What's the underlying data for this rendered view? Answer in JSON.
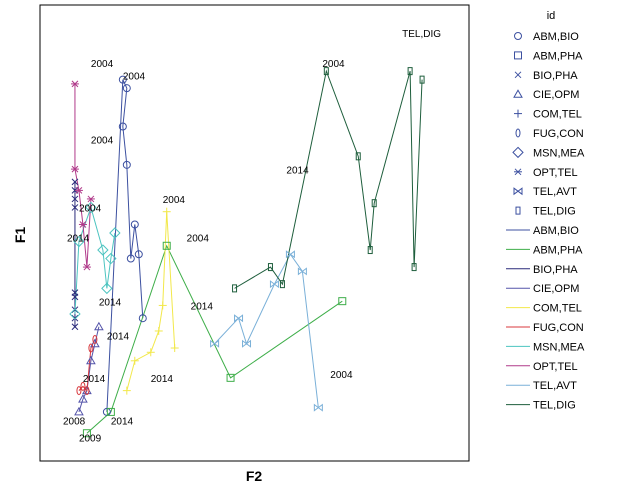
{
  "chart_data": {
    "type": "scatter",
    "title": "",
    "xlabel": "F2",
    "ylabel": "F1",
    "xlim": [
      0,
      100
    ],
    "ylim": [
      0,
      100
    ],
    "grid": false,
    "legend": {
      "title": "id",
      "placement": "right"
    },
    "annotations": [
      {
        "text": "2004",
        "x": 9,
        "y": 89
      },
      {
        "text": "2004",
        "x": 17,
        "y": 86
      },
      {
        "text": "2004",
        "x": 9,
        "y": 71
      },
      {
        "text": "2004",
        "x": 6,
        "y": 55
      },
      {
        "text": "2014",
        "x": 3,
        "y": 48
      },
      {
        "text": "2004",
        "x": 27,
        "y": 57
      },
      {
        "text": "2004",
        "x": 33,
        "y": 48
      },
      {
        "text": "2014",
        "x": 11,
        "y": 33
      },
      {
        "text": "2014",
        "x": 13,
        "y": 25
      },
      {
        "text": "2014",
        "x": 7,
        "y": 15
      },
      {
        "text": "2014",
        "x": 24,
        "y": 15
      },
      {
        "text": "2014",
        "x": 14,
        "y": 5
      },
      {
        "text": "2014",
        "x": 34,
        "y": 32
      },
      {
        "text": "2014",
        "x": 58,
        "y": 64
      },
      {
        "text": "2004",
        "x": 67,
        "y": 89
      },
      {
        "text": "2004",
        "x": 69,
        "y": 16
      },
      {
        "text": "TEL,DIG",
        "x": 87,
        "y": 96
      },
      {
        "text": "2008",
        "x": 2,
        "y": 5
      },
      {
        "text": "2009",
        "x": 6,
        "y": 1
      }
    ],
    "series": [
      {
        "name": "ABM,BIO",
        "marker": "circle",
        "color": "#3C50A0",
        "x": [
          13,
          17,
          18,
          17,
          18,
          19,
          20,
          21,
          22
        ],
        "y": [
          8,
          86,
          84,
          75,
          66,
          44,
          52,
          45,
          30
        ]
      },
      {
        "name": "ABM,PHA",
        "marker": "square",
        "color": "#3EAE49",
        "x": [
          8,
          14,
          28,
          44,
          72
        ],
        "y": [
          3,
          8,
          47,
          16,
          34
        ]
      },
      {
        "name": "BIO,PHA",
        "marker": "x",
        "color": "#2A2A7A",
        "x": [
          5,
          5,
          5,
          5,
          5,
          5,
          5,
          5,
          5
        ],
        "y": [
          62,
          60,
          58,
          56,
          36,
          35,
          32,
          30,
          28
        ]
      },
      {
        "name": "CIE,OPM",
        "marker": "triangle",
        "color": "#5555AA",
        "x": [
          6,
          7,
          8,
          9,
          10,
          11
        ],
        "y": [
          8,
          11,
          13,
          20,
          24,
          28
        ]
      },
      {
        "name": "COM,TEL",
        "marker": "plus",
        "color": "#F2E84A",
        "x": [
          18,
          20,
          24,
          26,
          27,
          28,
          30
        ],
        "y": [
          13,
          20,
          22,
          27,
          33,
          55,
          23
        ]
      },
      {
        "name": "FUG,CON",
        "marker": "ellipse",
        "color": "#D8383D",
        "x": [
          6,
          7,
          8,
          9,
          10
        ],
        "y": [
          13,
          14,
          13,
          23,
          25
        ]
      },
      {
        "name": "MSN,MEA",
        "marker": "diamond",
        "color": "#4CC4C0",
        "x": [
          5,
          6,
          9,
          12,
          13,
          14,
          15
        ],
        "y": [
          31,
          48,
          56,
          46,
          37,
          44,
          50
        ]
      },
      {
        "name": "OPT,TEL",
        "marker": "star",
        "color": "#B03A8A",
        "x": [
          5,
          5,
          6,
          7,
          8,
          9
        ],
        "y": [
          85,
          65,
          60,
          52,
          42,
          58
        ]
      },
      {
        "name": "TEL,AVT",
        "marker": "bowtie",
        "color": "#7AB0D8",
        "x": [
          40,
          46,
          48,
          55,
          59,
          62,
          66
        ],
        "y": [
          24,
          30,
          24,
          38,
          45,
          41,
          9
        ]
      },
      {
        "name": "TEL,DIG",
        "marker": "rect",
        "color": "#1E5E3C",
        "x": [
          45,
          54,
          57,
          68,
          76,
          79,
          80,
          89,
          90,
          92
        ],
        "y": [
          37,
          42,
          38,
          88,
          68,
          46,
          57,
          88,
          42,
          86
        ]
      }
    ]
  }
}
